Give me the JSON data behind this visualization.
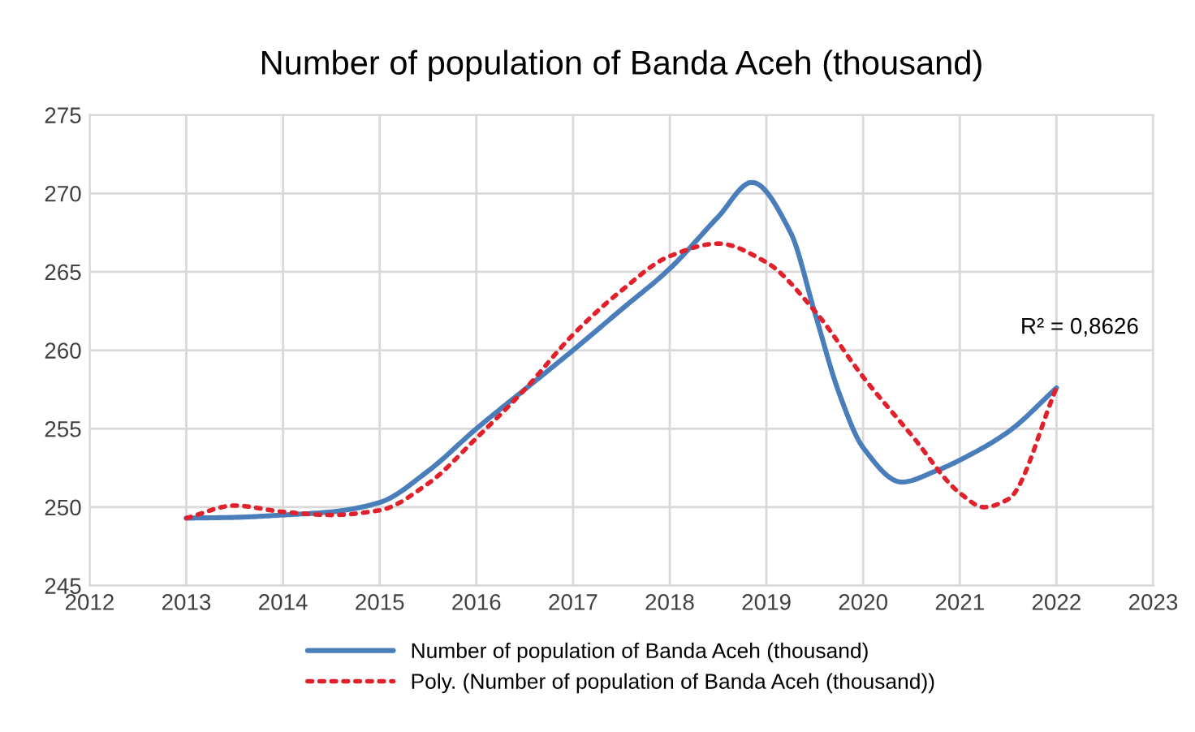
{
  "chart_data": {
    "type": "line",
    "title": "Number of population of Banda Aceh (thousand)",
    "xlim": [
      2012,
      2023
    ],
    "xticks": [
      2012,
      2013,
      2014,
      2015,
      2016,
      2017,
      2018,
      2019,
      2020,
      2021,
      2022,
      2023
    ],
    "ylim": [
      245,
      275
    ],
    "yticks": [
      245,
      250,
      255,
      260,
      265,
      270,
      275
    ],
    "grid": true,
    "legend": "bottom",
    "series": [
      {
        "name": "Number of population of Banda Aceh (thousand)",
        "color": "#4a7ebb",
        "line_style": "solid",
        "x": [
          2013,
          2013.5,
          2014,
          2014.5,
          2015,
          2015.5,
          2016,
          2016.5,
          2017,
          2017.5,
          2018,
          2018.5,
          2018.85,
          2019.25,
          2019.5,
          2019.75,
          2020,
          2020.4,
          2020.75,
          2021,
          2021.5,
          2022
        ],
        "values": [
          249.3,
          249.35,
          249.5,
          249.7,
          250.3,
          252.3,
          255.0,
          257.5,
          260.0,
          262.6,
          265.2,
          268.5,
          270.7,
          267.5,
          262.4,
          257.3,
          253.8,
          251.6,
          252.3,
          253.0,
          254.8,
          257.6
        ]
      },
      {
        "name": "Poly. (Number of population of Banda Aceh (thousand))",
        "color": "#e0202a",
        "line_style": "dotted",
        "x": [
          2013,
          2013.5,
          2014,
          2014.5,
          2015,
          2015.5,
          2016,
          2016.5,
          2017,
          2017.5,
          2018,
          2018.5,
          2019,
          2019.5,
          2020,
          2020.5,
          2021,
          2021.25,
          2021.5,
          2022
        ],
        "values": [
          249.3,
          250.1,
          249.7,
          249.5,
          249.8,
          251.5,
          254.4,
          257.5,
          261.0,
          263.8,
          266.0,
          266.8,
          265.6,
          262.5,
          258.3,
          254.6,
          250.9,
          250.0,
          250.5,
          257.6
        ]
      }
    ],
    "annotations": [
      {
        "text": "R² = 0,8626",
        "x": 2022,
        "y": 257.6
      }
    ]
  }
}
